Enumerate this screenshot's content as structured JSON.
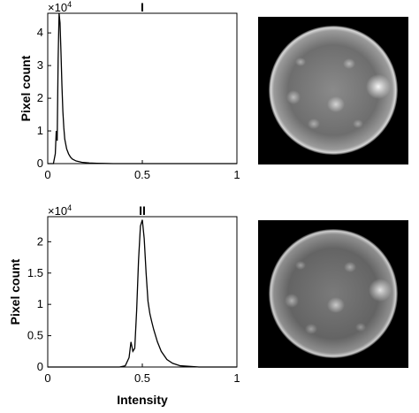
{
  "chart_data": [
    {
      "type": "line",
      "title": "I",
      "xlabel": "",
      "ylabel": "Pixel count",
      "y_multiplier": {
        "base": "×10",
        "exponent": "4"
      },
      "xlim": [
        0,
        1
      ],
      "ylim": [
        0,
        4.6
      ],
      "xticks": [
        {
          "v": 0,
          "label": "0"
        },
        {
          "v": 0.5,
          "label": "0.5"
        },
        {
          "v": 1,
          "label": "1"
        }
      ],
      "yticks": [
        {
          "v": 0,
          "label": "0"
        },
        {
          "v": 1,
          "label": "1"
        },
        {
          "v": 2,
          "label": "2"
        },
        {
          "v": 3,
          "label": "3"
        },
        {
          "v": 4,
          "label": "4"
        }
      ],
      "grid": false,
      "series": [
        {
          "color": "#000000",
          "x": [
            0.0,
            0.03,
            0.04,
            0.045,
            0.05,
            0.055,
            0.06,
            0.065,
            0.07,
            0.075,
            0.08,
            0.085,
            0.09,
            0.1,
            0.11,
            0.12,
            0.13,
            0.15,
            0.18,
            0.22,
            0.26,
            0.3,
            0.35,
            0.4,
            0.5,
            0.6,
            0.8,
            1.0
          ],
          "y": [
            0,
            0,
            0.3,
            1.0,
            0.7,
            3.2,
            4.6,
            4.3,
            3.4,
            2.4,
            1.6,
            1.1,
            0.75,
            0.45,
            0.3,
            0.2,
            0.14,
            0.08,
            0.04,
            0.02,
            0.01,
            0.005,
            0.0,
            0.0,
            0,
            0,
            0,
            0
          ]
        }
      ]
    },
    {
      "type": "line",
      "title": "II",
      "xlabel": "Intensity",
      "ylabel": "Pixel count",
      "y_multiplier": {
        "base": "×10",
        "exponent": "4"
      },
      "xlim": [
        0,
        1
      ],
      "ylim": [
        0,
        2.4
      ],
      "xticks": [
        {
          "v": 0,
          "label": "0"
        },
        {
          "v": 0.5,
          "label": "0.5"
        },
        {
          "v": 1,
          "label": "1"
        }
      ],
      "yticks": [
        {
          "v": 0,
          "label": "0"
        },
        {
          "v": 0.5,
          "label": "0.5"
        },
        {
          "v": 1,
          "label": "1"
        },
        {
          "v": 1.5,
          "label": "1.5"
        },
        {
          "v": 2,
          "label": "2"
        }
      ],
      "grid": false,
      "series": [
        {
          "color": "#000000",
          "x": [
            0.0,
            0.38,
            0.41,
            0.43,
            0.44,
            0.45,
            0.46,
            0.47,
            0.48,
            0.49,
            0.5,
            0.51,
            0.52,
            0.53,
            0.54,
            0.55,
            0.56,
            0.58,
            0.6,
            0.63,
            0.66,
            0.7,
            0.75,
            0.8,
            1.0
          ],
          "y": [
            0,
            0,
            0.02,
            0.15,
            0.4,
            0.25,
            0.3,
            0.9,
            1.7,
            2.25,
            2.35,
            2.05,
            1.5,
            1.05,
            0.85,
            0.72,
            0.6,
            0.4,
            0.25,
            0.12,
            0.06,
            0.02,
            0.01,
            0.0,
            0
          ]
        }
      ]
    }
  ],
  "images": [
    {
      "name": "solar-disk-image-1",
      "depicts": "Full-disk grayscale image of the Sun with bright active regions"
    },
    {
      "name": "solar-disk-image-2",
      "depicts": "Full-disk grayscale image of the Sun, contrast-enhanced"
    }
  ]
}
